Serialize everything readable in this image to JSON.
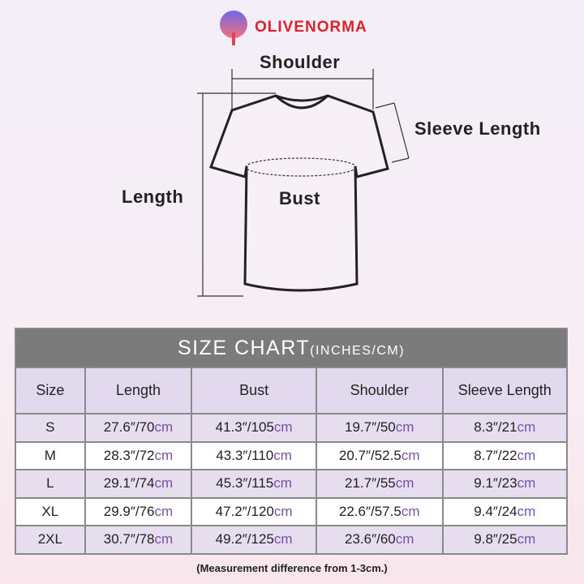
{
  "brand": {
    "name": "OLIVENORMA",
    "logo_icon": "tree-icon"
  },
  "diagram": {
    "shoulder": "Shoulder",
    "sleeve": "Sleeve Length",
    "length": "Length",
    "bust": "Bust"
  },
  "chart": {
    "title": "SIZE CHART",
    "title_units": "(INCHES/CM)",
    "columns": [
      "Size",
      "Length",
      "Bust",
      "Shoulder",
      "Sleeve Length"
    ],
    "rows": [
      {
        "size": "S",
        "values": [
          [
            "27.6″/70",
            "cm"
          ],
          [
            "41.3″/105",
            "cm"
          ],
          [
            "19.7″/50",
            "cm"
          ],
          [
            "8.3″/21",
            "cm"
          ]
        ]
      },
      {
        "size": "M",
        "values": [
          [
            "28.3″/72",
            "cm"
          ],
          [
            "43.3″/110",
            "cm"
          ],
          [
            "20.7″/52.5",
            "cm"
          ],
          [
            "8.7″/22",
            "cm"
          ]
        ]
      },
      {
        "size": "L",
        "values": [
          [
            "29.1″/74",
            "cm"
          ],
          [
            "45.3″/115",
            "cm"
          ],
          [
            "21.7″/55",
            "cm"
          ],
          [
            "9.1″/23",
            "cm"
          ]
        ]
      },
      {
        "size": "XL",
        "values": [
          [
            "29.9″/76",
            "cm"
          ],
          [
            "47.2″/120",
            "cm"
          ],
          [
            "22.6″/57.5",
            "cm"
          ],
          [
            "9.4″/24",
            "cm"
          ]
        ]
      },
      {
        "size": "2XL",
        "values": [
          [
            "30.7″/78",
            "cm"
          ],
          [
            "49.2″/125",
            "cm"
          ],
          [
            "23.6″/60",
            "cm"
          ],
          [
            "9.8″/25",
            "cm"
          ]
        ]
      }
    ],
    "colors": {
      "title_bg": "#7b7b7b",
      "header_bg": "#e3d9ee",
      "cm": "#7a4fa8"
    }
  },
  "note": "(Measurement difference from 1-3cm.)"
}
